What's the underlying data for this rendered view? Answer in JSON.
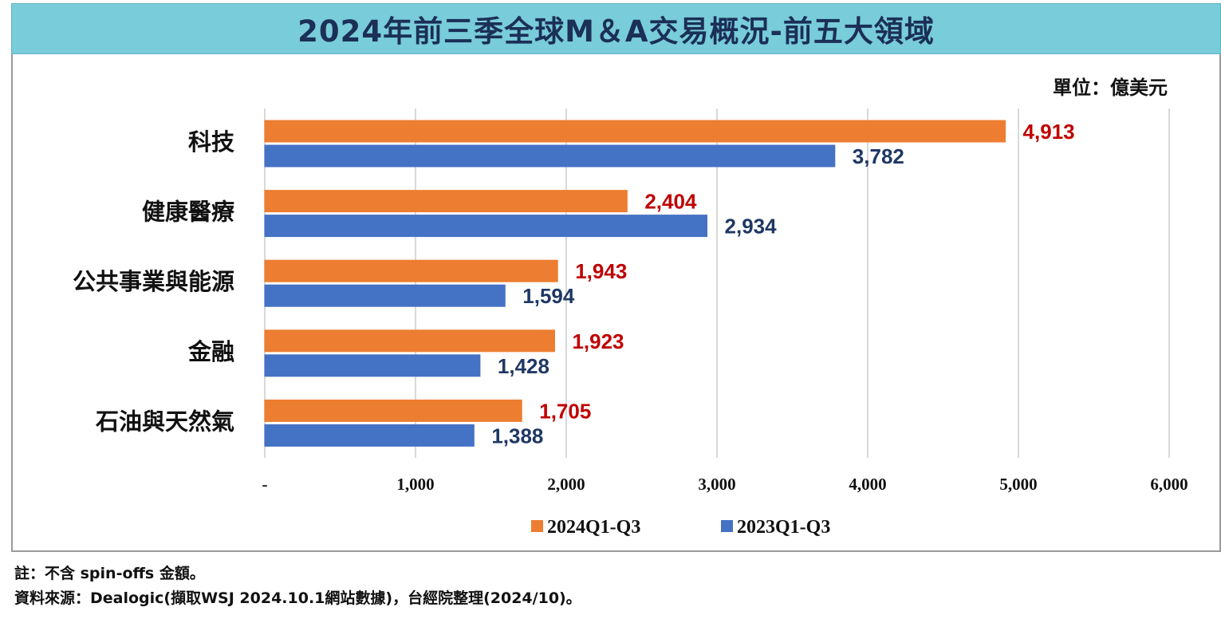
{
  "title": "2024年前三季全球M＆A交易概況-前五大領域",
  "chart_data": {
    "type": "bar",
    "orientation": "horizontal",
    "unit_label": "單位：億美元",
    "categories": [
      "科技",
      "健康醫療",
      "公共事業與能源",
      "金融",
      "石油與天然氣"
    ],
    "series": [
      {
        "name": "2024Q1-Q3",
        "color": "#ed7d31",
        "label_color": "#c00000",
        "values": [
          4913,
          2404,
          1943,
          1923,
          1705
        ],
        "labels": [
          "4,913",
          "2,404",
          "1,943",
          "1,923",
          "1,705"
        ]
      },
      {
        "name": "2023Q1-Q3",
        "color": "#4472c4",
        "label_color": "#1f3864",
        "values": [
          3782,
          2934,
          1594,
          1428,
          1388
        ],
        "labels": [
          "3,782",
          "2,934",
          "1,594",
          "1,428",
          "1,388"
        ]
      }
    ],
    "xlim": [
      0,
      6000
    ],
    "x_ticks": [
      0,
      1000,
      2000,
      3000,
      4000,
      5000,
      6000
    ],
    "x_tick_labels": [
      "-",
      "1,000",
      "2,000",
      "3,000",
      "4,000",
      "5,000",
      "6,000"
    ],
    "grid": true,
    "legend": "bottom"
  },
  "notes": {
    "note1": "註：不含 spin-offs 金額。",
    "note2": "資料來源：Dealogic(擷取WSJ 2024.10.1網站數據)，台經院整理(2024/10)。"
  }
}
